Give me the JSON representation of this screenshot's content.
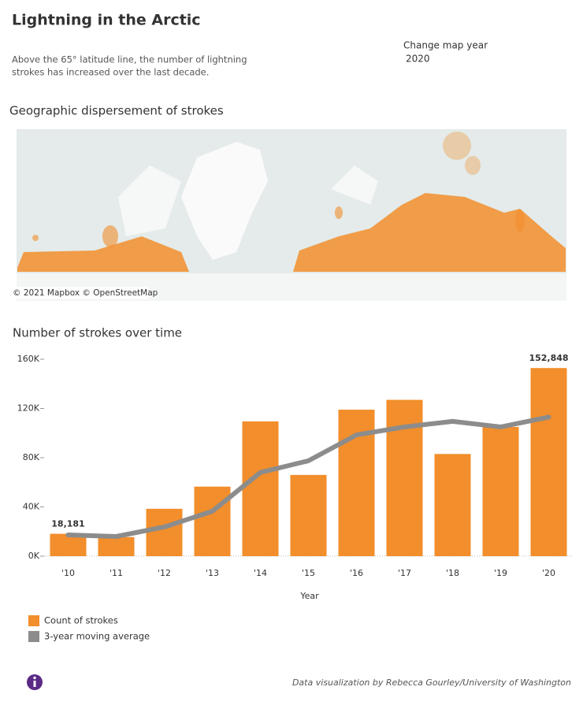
{
  "header": {
    "title": "Lightning in the Arctic",
    "description": [
      "Above the 65° latitude line, the number of lightning",
      "strokes has increased over the last decade."
    ],
    "control_label": "Change map year",
    "control_value": "2020"
  },
  "map": {
    "title": "Geographic dispersement of strokes",
    "attribution": "© 2021 Mapbox © OpenStreetMap"
  },
  "chart_data": {
    "type": "bar",
    "title": "Number of strokes over time",
    "xlabel": "Year",
    "categories": [
      "'10",
      "'11",
      "'12",
      "'13",
      "'14",
      "'15",
      "'16",
      "'17",
      "'18",
      "'19",
      "'20"
    ],
    "series": [
      {
        "name": "Count of strokes",
        "color": "#f28e2b",
        "values": [
          18181,
          15500,
          38500,
          56500,
          109500,
          66000,
          119000,
          127000,
          83000,
          105000,
          152848
        ],
        "value_labels": [
          "18,181",
          null,
          null,
          null,
          null,
          null,
          null,
          null,
          null,
          null,
          "152,848"
        ]
      },
      {
        "name": "3-year moving average",
        "type": "line",
        "color": "#8c8c8c",
        "values": [
          17300,
          16000,
          23700,
          36500,
          68000,
          77500,
          98500,
          105000,
          109500,
          105000,
          113000
        ]
      }
    ],
    "ylim": [
      0,
      160000
    ],
    "yticks": [
      {
        "value": 0,
        "label": "0K"
      },
      {
        "value": 40000,
        "label": "40K"
      },
      {
        "value": 80000,
        "label": "80K"
      },
      {
        "value": 120000,
        "label": "120K"
      },
      {
        "value": 160000,
        "label": "160K"
      }
    ]
  },
  "footer": {
    "credit": "Data visualization by Rebecca Gourley/University of Washington"
  }
}
